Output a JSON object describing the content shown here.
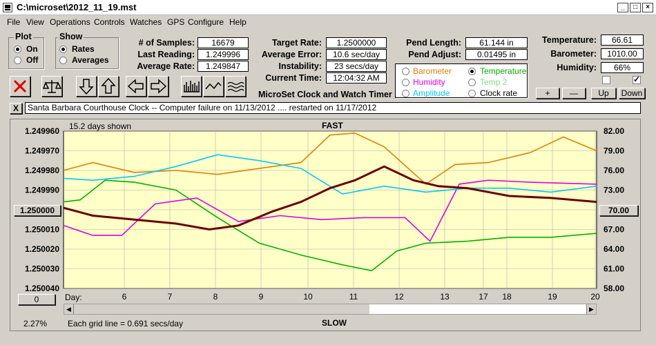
{
  "window": {
    "title": "C:\\microset\\2012_11_19.mst"
  },
  "menu": [
    "File",
    "View",
    "Operations",
    "Controls",
    "Watches",
    "GPS",
    "Configure",
    "Help"
  ],
  "plot_group": {
    "title": "Plot",
    "on": "On",
    "off": "Off"
  },
  "show_group": {
    "title": "Show",
    "rates": "Rates",
    "averages": "Averages"
  },
  "stats": {
    "samples_label": "# of Samples:",
    "samples": "16679",
    "last_reading_label": "Last Reading:",
    "last_reading": "1.249996",
    "average_rate_label": "Average Rate:",
    "average_rate": "1.249847",
    "target_rate_label": "Target Rate:",
    "target_rate": "1.2500000",
    "average_error_label": "Average Error:",
    "average_error": "10.6 sec/day",
    "instability_label": "Instability:",
    "instability": "23 secs/day",
    "current_time_label": "Current Time:",
    "current_time": "12:04:32 AM",
    "pend_length_label": "Pend Length:",
    "pend_length": "61.144 in",
    "pend_adjust_label": "Pend Adjust:",
    "pend_adjust": "0.01495 in",
    "temperature_label": "Temperature:",
    "temperature": "66.61",
    "barometer_label": "Barometer:",
    "barometer": "1010.00",
    "humidity_label": "Humidity:",
    "humidity": "66%"
  },
  "app_name": "MicroSet Clock and Watch Timer",
  "sensor_options": {
    "barometer": "Barometer",
    "temperature": "Temperature",
    "humidity": "Humidity",
    "temp2": "Temp 2",
    "amplitude": "Amplitude",
    "clock_rate": "Clock rate"
  },
  "adjust_buttons": {
    "plus": "+",
    "minus": "—",
    "up": "Up",
    "down": "Down"
  },
  "notes": "Santa Barbara Courthouse Clock  --  Computer failure on 11/13/2012  .... restarted on 11/17/2012",
  "close_note": "X",
  "chart_header": {
    "days_shown": "15.2 days shown",
    "fast": "FAST",
    "slow": "SLOW",
    "grid_note": "Each grid line = 0.691 secs/day",
    "percent": "2.27%",
    "day_label": "Day:"
  },
  "center_left_value": "1.250000",
  "center_right_value": "70.00",
  "zero_button": "0",
  "colors": {
    "barometer": "#e08000",
    "temperature": "#00b000",
    "humidity": "#e000e0",
    "temp2": "#80e080",
    "amplitude": "#00c8ff",
    "clock_rate": "#6a0000"
  },
  "chart_data": {
    "type": "line",
    "y_left_ticks": [
      "1.249960",
      "1.249970",
      "1.249980",
      "1.249990",
      "1.250010",
      "1.250020",
      "1.250030",
      "1.250040"
    ],
    "y_right_ticks": [
      "82.00",
      "79.00",
      "76.00",
      "73.00",
      "67.00",
      "64.00",
      "61.00",
      "58.00"
    ],
    "x_ticks": [
      "6",
      "7",
      "8",
      "9",
      "10",
      "11",
      "12",
      "13",
      "17",
      "18",
      "19",
      "20"
    ],
    "series": [
      {
        "name": "Barometer",
        "color": "#e08000",
        "x": [
          4.8,
          5.5,
          6.5,
          7.5,
          8.5,
          9.5,
          10.5,
          11.2,
          11.8,
          12.5,
          13.5,
          14.2,
          15.0,
          16.0,
          16.8,
          17.6
        ],
        "y": [
          1.24998,
          1.249976,
          1.249981,
          1.24998,
          1.249982,
          1.249979,
          1.249976,
          1.249962,
          1.249961,
          1.249968,
          1.249987,
          1.249977,
          1.249976,
          1.249971,
          1.249963,
          1.24997
        ]
      },
      {
        "name": "Temperature",
        "color": "#00b000",
        "x": [
          4.8,
          5.2,
          5.8,
          6.5,
          7.5,
          8.5,
          9.5,
          10.5,
          11.5,
          12.2,
          12.8,
          13.5,
          14.5,
          15.5,
          16.5,
          17.6
        ],
        "y": [
          1.249996,
          1.249995,
          1.249985,
          1.249986,
          1.24999,
          1.250004,
          1.250017,
          1.250023,
          1.250028,
          1.250031,
          1.250021,
          1.250017,
          1.250016,
          1.250014,
          1.250014,
          1.250012
        ]
      },
      {
        "name": "Humidity",
        "color": "#e000e0",
        "x": [
          4.8,
          5.5,
          6.2,
          7.0,
          8.0,
          9.0,
          10.0,
          11.0,
          12.0,
          13.0,
          13.6,
          14.3,
          15.0,
          16.0,
          17.6
        ],
        "y": [
          1.250008,
          1.250013,
          1.250013,
          1.249997,
          1.249994,
          1.250006,
          1.250003,
          1.250005,
          1.250004,
          1.250004,
          1.250016,
          1.249987,
          1.249985,
          1.249986,
          1.249987
        ]
      },
      {
        "name": "Amplitude",
        "color": "#00c8ff",
        "x": [
          4.8,
          5.5,
          6.5,
          7.5,
          8.5,
          9.5,
          10.5,
          11.5,
          12.5,
          13.5,
          14.5,
          15.5,
          16.5,
          17.6
        ],
        "y": [
          1.249984,
          1.249985,
          1.249983,
          1.249978,
          1.249972,
          1.249975,
          1.249979,
          1.249992,
          1.249988,
          1.249991,
          1.249989,
          1.249989,
          1.249991,
          1.249988
        ]
      },
      {
        "name": "Clock rate",
        "color": "#6a0000",
        "x": [
          4.8,
          5.5,
          6.5,
          7.5,
          8.3,
          9.0,
          9.8,
          10.5,
          11.2,
          11.8,
          12.5,
          13.2,
          13.8,
          14.5,
          15.5,
          16.5,
          17.6
        ],
        "y": [
          1.249999,
          1.250003,
          1.250005,
          1.250007,
          1.25001,
          1.250008,
          1.250001,
          1.249996,
          1.249989,
          1.249985,
          1.249978,
          1.249985,
          1.249988,
          1.249989,
          1.249993,
          1.249994,
          1.249996
        ]
      }
    ],
    "xlim": [
      4.8,
      17.6
    ],
    "ylim": [
      1.24996,
      1.25004
    ],
    "grid": true
  }
}
